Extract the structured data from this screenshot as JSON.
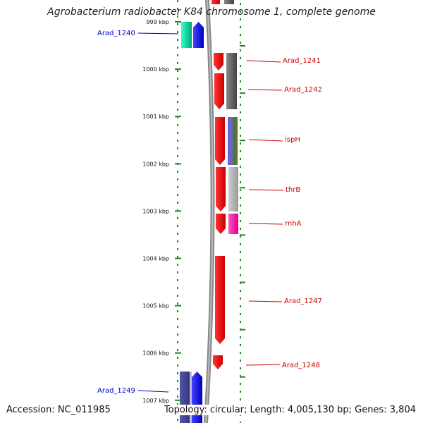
{
  "title": "Agrobacterium radiobacter K84 chromosome 1, complete genome",
  "footer": {
    "accession": "Accession: NC_011985",
    "topology": "Topology: circular; Length: 4,005,130 bp; Genes: 3,804"
  },
  "colors": {
    "backbone": "#888888",
    "tick": "#228822",
    "forward_label": "#0000cc",
    "reverse_label": "#cc0000"
  },
  "ticks": [
    {
      "label": "999 kbp",
      "kbp": 999
    },
    {
      "label": "1000 kbp",
      "kbp": 1000
    },
    {
      "label": "1001 kbp",
      "kbp": 1001
    },
    {
      "label": "1002 kbp",
      "kbp": 1002
    },
    {
      "label": "1003 kbp",
      "kbp": 1003
    },
    {
      "label": "1004 kbp",
      "kbp": 1004
    },
    {
      "label": "1005 kbp",
      "kbp": 1005
    },
    {
      "label": "1006 kbp",
      "kbp": 1006
    },
    {
      "label": "1007 kbp",
      "kbp": 1007
    }
  ],
  "gene_labels": [
    {
      "name": "Arad_1240",
      "strand": "forward"
    },
    {
      "name": "Arad_1241",
      "strand": "reverse"
    },
    {
      "name": "Arad_1242",
      "strand": "reverse"
    },
    {
      "name": "ispH",
      "strand": "reverse"
    },
    {
      "name": "thrB",
      "strand": "reverse"
    },
    {
      "name": "rnhA",
      "strand": "reverse"
    },
    {
      "name": "Arad_1247",
      "strand": "reverse"
    },
    {
      "name": "Arad_1248",
      "strand": "reverse"
    },
    {
      "name": "Arad_1249",
      "strand": "forward"
    }
  ]
}
